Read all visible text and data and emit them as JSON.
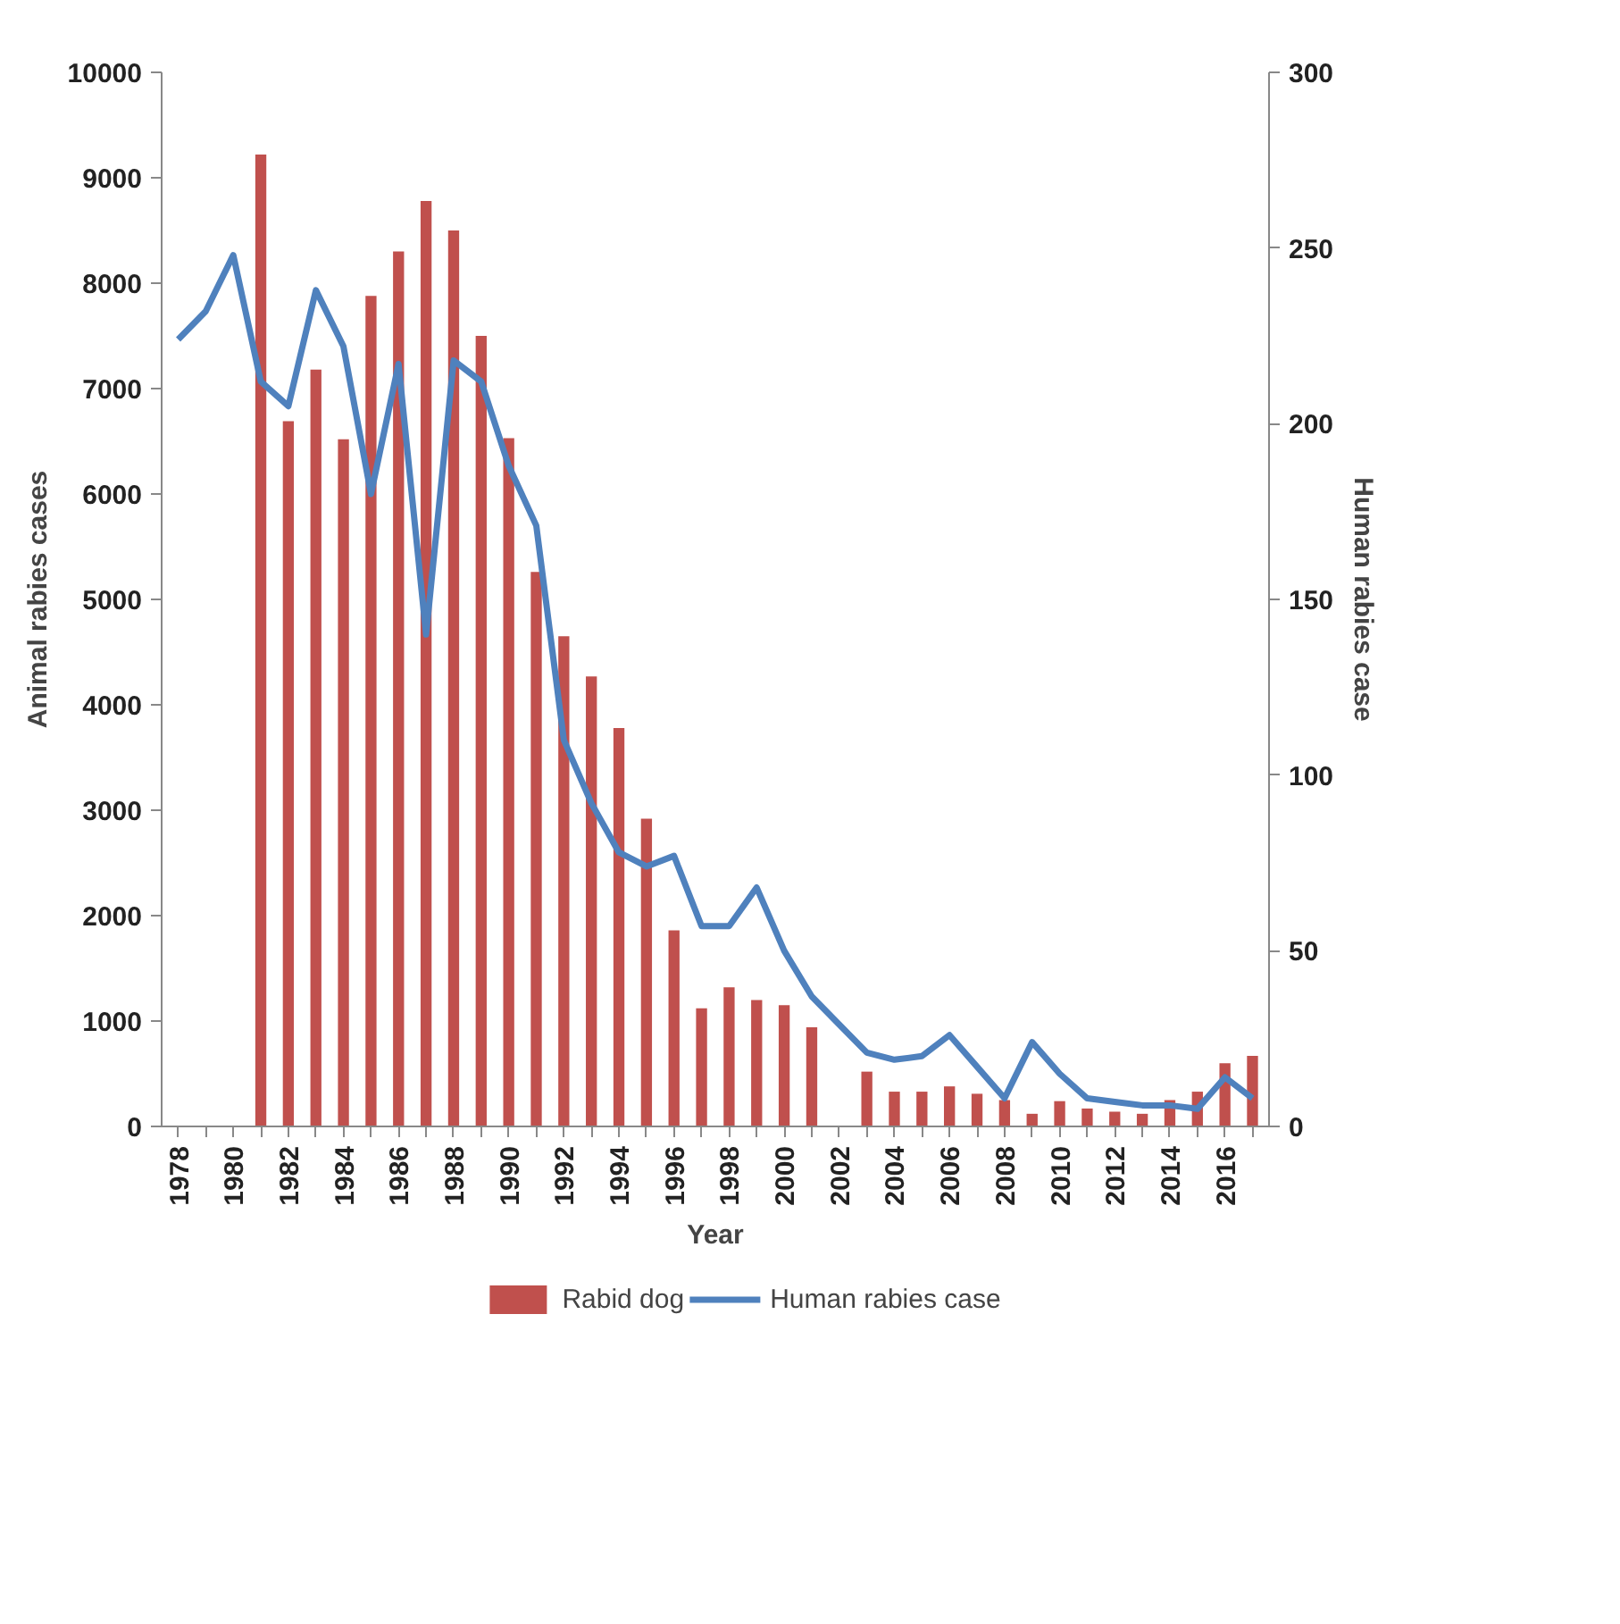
{
  "chart_data": {
    "type": "bar",
    "xlabel": "Year",
    "ylabel": "Animal rabies cases",
    "y2label": "Human rabies case",
    "categories": [
      "1978",
      null,
      "1980",
      null,
      "1982",
      null,
      "1984",
      null,
      "1986",
      null,
      "1988",
      null,
      "1990",
      null,
      "1992",
      null,
      "1994",
      null,
      "1996",
      null,
      "1998",
      null,
      "2000",
      null,
      "2002",
      null,
      "2004",
      null,
      "2006",
      null,
      "2008",
      null,
      "2010",
      null,
      "2012",
      null,
      "2014",
      null,
      "2016",
      null
    ],
    "series": [
      {
        "name": "Rabid dog",
        "type": "bar",
        "color": "#c0504d",
        "values": [
          null,
          null,
          null,
          9220,
          6690,
          7180,
          6520,
          7880,
          8300,
          8780,
          8500,
          7500,
          6530,
          5260,
          4650,
          4270,
          3780,
          2920,
          1860,
          1120,
          1320,
          1200,
          1150,
          940,
          null,
          520,
          330,
          330,
          380,
          310,
          250,
          120,
          240,
          170,
          140,
          120,
          250,
          330,
          600,
          670
        ]
      },
      {
        "name": "Human rabies case",
        "type": "line",
        "axis": "y2",
        "color": "#4f81bd",
        "values": [
          224,
          232,
          248,
          212,
          205,
          238,
          222,
          180,
          217,
          140,
          218,
          212,
          188,
          171,
          110,
          92,
          78,
          74,
          77,
          57,
          57,
          68,
          50,
          37,
          29,
          21,
          19,
          20,
          26,
          17,
          8,
          24,
          15,
          8,
          7,
          6,
          6,
          5,
          14,
          8
        ]
      }
    ],
    "ylim": [
      0,
      10000
    ],
    "yticks": [
      0,
      1000,
      2000,
      3000,
      4000,
      5000,
      6000,
      7000,
      8000,
      9000,
      10000
    ],
    "y2lim": [
      0,
      300
    ],
    "y2ticks": [
      0,
      50,
      100,
      150,
      200,
      250,
      300
    ],
    "legend": "bottom",
    "grid": false
  }
}
